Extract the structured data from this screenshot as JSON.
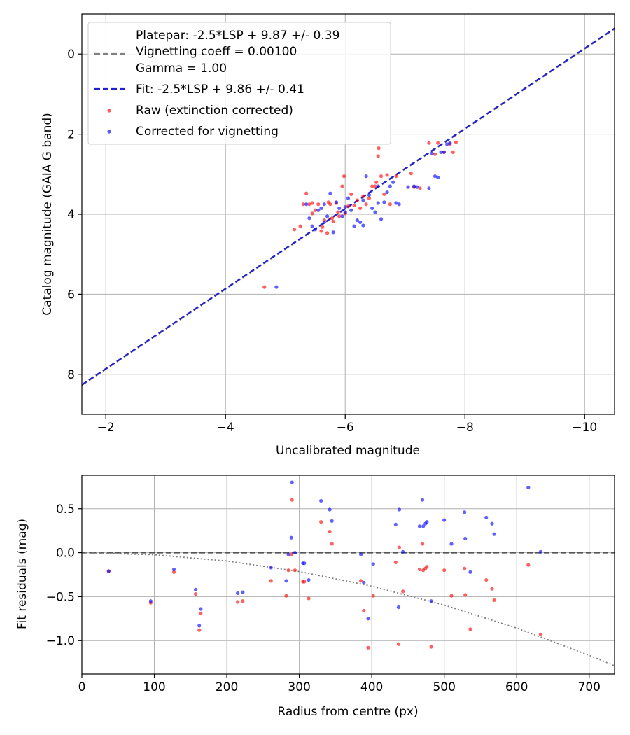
{
  "chart_data": [
    {
      "type": "scatter",
      "xlabel": "Uncalibrated magnitude",
      "ylabel": "Catalog magnitude (GAIA G band)",
      "xlim": [
        -1.6,
        -10.5
      ],
      "ylim": [
        9.0,
        -1.0
      ],
      "x_ticks": [
        -2,
        -4,
        -6,
        -8,
        -10
      ],
      "x_tick_labels": [
        "−2",
        "−4",
        "−6",
        "−8",
        "−10"
      ],
      "y_ticks": [
        0,
        2,
        4,
        6,
        8
      ],
      "y_tick_labels": [
        "0",
        "2",
        "4",
        "6",
        "8"
      ],
      "grid": true,
      "legend_position": "upper-left",
      "legend": {
        "platepar_line1": "Platepar: -2.5*LSP + 9.87 +/- 0.39",
        "platepar_line2": "Vignetting coeff = 0.00100",
        "platepar_line3": "Gamma = 1.00",
        "fit": "Fit: -2.5*LSP + 9.86 +/- 0.41",
        "raw": "Raw (extinction corrected)",
        "corrected": "Corrected for vignetting"
      },
      "lines": [
        {
          "name": "Platepar",
          "color": "#808080",
          "style": "dashed",
          "slope": 1,
          "intercept": 9.87
        },
        {
          "name": "Fit",
          "color": "#2020d0",
          "style": "dashed",
          "slope": 1,
          "intercept": 9.86
        }
      ],
      "series": [
        {
          "name": "Raw (extinction corrected)",
          "color": "#ff0000",
          "points": [
            [
              -4.65,
              5.82
            ],
            [
              -5.15,
              4.38
            ],
            [
              -5.25,
              4.3
            ],
            [
              -5.3,
              3.75
            ],
            [
              -5.35,
              3.48
            ],
            [
              -5.4,
              3.75
            ],
            [
              -5.45,
              3.98
            ],
            [
              -5.5,
              3.9
            ],
            [
              -5.55,
              3.75
            ],
            [
              -5.6,
              4.42
            ],
            [
              -5.62,
              4.32
            ],
            [
              -5.65,
              4.15
            ],
            [
              -5.7,
              4.47
            ],
            [
              -5.72,
              3.7
            ],
            [
              -5.75,
              3.75
            ],
            [
              -5.78,
              4.1
            ],
            [
              -5.8,
              4.18
            ],
            [
              -5.85,
              3.72
            ],
            [
              -5.88,
              3.95
            ],
            [
              -5.9,
              4.05
            ],
            [
              -5.95,
              3.3
            ],
            [
              -5.98,
              3.05
            ],
            [
              -6.05,
              3.8
            ],
            [
              -6.1,
              3.5
            ],
            [
              -6.15,
              3.78
            ],
            [
              -6.2,
              3.65
            ],
            [
              -6.25,
              3.85
            ],
            [
              -6.3,
              3.55
            ],
            [
              -6.35,
              3.75
            ],
            [
              -6.4,
              3.6
            ],
            [
              -6.45,
              3.3
            ],
            [
              -6.5,
              3.3
            ],
            [
              -6.52,
              3.2
            ],
            [
              -6.55,
              2.55
            ],
            [
              -6.56,
              2.35
            ],
            [
              -6.6,
              3.05
            ],
            [
              -6.65,
              3.5
            ],
            [
              -6.75,
              3.75
            ],
            [
              -6.85,
              3.05
            ],
            [
              -7.1,
              2.98
            ],
            [
              -7.15,
              3.32
            ],
            [
              -7.25,
              3.35
            ],
            [
              -7.4,
              2.22
            ],
            [
              -7.5,
              2.5
            ],
            [
              -7.55,
              2.22
            ],
            [
              -7.65,
              2.45
            ],
            [
              -7.75,
              2.25
            ],
            [
              -7.8,
              2.45
            ],
            [
              -7.85,
              2.2
            ],
            [
              -6.7,
              3.02
            ],
            [
              -5.45,
              3.72
            ],
            [
              -6.0,
              3.98
            ]
          ]
        },
        {
          "name": "Corrected for vignetting",
          "color": "#0000ff",
          "points": [
            [
              -4.85,
              5.82
            ],
            [
              -5.35,
              3.75
            ],
            [
              -5.4,
              4.1
            ],
            [
              -5.45,
              4.3
            ],
            [
              -5.5,
              4.38
            ],
            [
              -5.55,
              3.9
            ],
            [
              -5.6,
              3.85
            ],
            [
              -5.65,
              4.2
            ],
            [
              -5.7,
              4.05
            ],
            [
              -5.75,
              3.48
            ],
            [
              -5.8,
              4.45
            ],
            [
              -5.85,
              3.7
            ],
            [
              -5.9,
              3.85
            ],
            [
              -5.95,
              4.05
            ],
            [
              -6.0,
              3.82
            ],
            [
              -6.05,
              3.6
            ],
            [
              -6.1,
              3.9
            ],
            [
              -6.15,
              4.3
            ],
            [
              -6.2,
              4.15
            ],
            [
              -6.25,
              4.2
            ],
            [
              -6.3,
              3.65
            ],
            [
              -6.35,
              3.05
            ],
            [
              -6.4,
              3.52
            ],
            [
              -6.45,
              3.85
            ],
            [
              -6.5,
              3.95
            ],
            [
              -6.55,
              3.72
            ],
            [
              -6.6,
              4.12
            ],
            [
              -6.65,
              3.7
            ],
            [
              -6.7,
              3.45
            ],
            [
              -6.75,
              3.3
            ],
            [
              -6.8,
              3.2
            ],
            [
              -6.85,
              3.72
            ],
            [
              -6.9,
              3.75
            ],
            [
              -7.05,
              3.32
            ],
            [
              -7.15,
              3.3
            ],
            [
              -7.2,
              3.32
            ],
            [
              -7.4,
              3.35
            ],
            [
              -7.45,
              2.48
            ],
            [
              -7.5,
              3.05
            ],
            [
              -7.55,
              3.08
            ],
            [
              -7.6,
              2.45
            ],
            [
              -7.65,
              2.45
            ],
            [
              -7.7,
              2.25
            ],
            [
              -7.75,
              2.22
            ],
            [
              -6.3,
              4.28
            ],
            [
              -6.55,
              3.3
            ],
            [
              -6.0,
              3.95
            ],
            [
              -5.65,
              3.75
            ]
          ]
        }
      ]
    },
    {
      "type": "scatter",
      "xlabel": "Radius from centre (px)",
      "ylabel": "Fit residuals (mag)",
      "xlim": [
        0,
        735
      ],
      "ylim": [
        -1.38,
        0.88
      ],
      "x_ticks": [
        0,
        100,
        200,
        300,
        400,
        500,
        600,
        700
      ],
      "x_tick_labels": [
        "0",
        "100",
        "200",
        "300",
        "400",
        "500",
        "600",
        "700"
      ],
      "y_ticks": [
        -1.0,
        -0.5,
        0.0,
        0.5
      ],
      "y_tick_labels": [
        "−1.0",
        "−0.5",
        "0.0",
        "0.5"
      ],
      "grid": true,
      "lines": [
        {
          "name": "Zero",
          "color": "#555555",
          "style": "dashed",
          "y": 0
        },
        {
          "name": "Vignetting model",
          "color": "#808080",
          "style": "dotted",
          "formula": "-0.001*r^2/420",
          "points": [
            [
              0,
              0
            ],
            [
              100,
              -0.024
            ],
            [
              200,
              -0.095
            ],
            [
              300,
              -0.214
            ],
            [
              400,
              -0.381
            ],
            [
              500,
              -0.595
            ],
            [
              600,
              -0.857
            ],
            [
              700,
              -1.167
            ],
            [
              735,
              -1.286
            ]
          ]
        }
      ],
      "series": [
        {
          "name": "Raw (extinction corrected)",
          "color": "#ff0000",
          "points": [
            [
              37,
              -0.21
            ],
            [
              95,
              -0.57
            ],
            [
              127,
              -0.22
            ],
            [
              157,
              -0.47
            ],
            [
              162,
              -0.88
            ],
            [
              164,
              -0.69
            ],
            [
              215,
              -0.56
            ],
            [
              222,
              -0.55
            ],
            [
              261,
              -0.32
            ],
            [
              282,
              -0.49
            ],
            [
              285,
              -0.2
            ],
            [
              289,
              -0.02
            ],
            [
              290,
              0.6
            ],
            [
              294,
              -0.2
            ],
            [
              305,
              -0.33
            ],
            [
              307,
              -0.33
            ],
            [
              313,
              -0.52
            ],
            [
              330,
              0.35
            ],
            [
              342,
              0.24
            ],
            [
              345,
              0.1
            ],
            [
              385,
              -0.32
            ],
            [
              389,
              -0.66
            ],
            [
              395,
              -1.08
            ],
            [
              402,
              -0.49
            ],
            [
              433,
              -0.11
            ],
            [
              437,
              -1.04
            ],
            [
              438,
              0.06
            ],
            [
              443,
              -0.44
            ],
            [
              466,
              -0.19
            ],
            [
              470,
              0.1
            ],
            [
              471,
              -0.2
            ],
            [
              474,
              -0.18
            ],
            [
              476,
              -0.16
            ],
            [
              482,
              -1.07
            ],
            [
              500,
              -0.2
            ],
            [
              510,
              -0.49
            ],
            [
              528,
              -0.18
            ],
            [
              529,
              -0.48
            ],
            [
              536,
              -0.87
            ],
            [
              558,
              -0.31
            ],
            [
              566,
              -0.41
            ],
            [
              569,
              -0.54
            ],
            [
              616,
              -0.14
            ],
            [
              633,
              -0.93
            ]
          ]
        },
        {
          "name": "Corrected for vignetting",
          "color": "#0000ff",
          "points": [
            [
              37,
              -0.21
            ],
            [
              95,
              -0.55
            ],
            [
              127,
              -0.19
            ],
            [
              157,
              -0.42
            ],
            [
              162,
              -0.83
            ],
            [
              164,
              -0.64
            ],
            [
              215,
              -0.46
            ],
            [
              222,
              -0.45
            ],
            [
              261,
              -0.17
            ],
            [
              282,
              -0.32
            ],
            [
              285,
              -0.02
            ],
            [
              289,
              0.17
            ],
            [
              290,
              0.8
            ],
            [
              294,
              0.0
            ],
            [
              305,
              -0.12
            ],
            [
              307,
              -0.12
            ],
            [
              313,
              -0.31
            ],
            [
              330,
              0.59
            ],
            [
              342,
              0.49
            ],
            [
              345,
              0.36
            ],
            [
              385,
              -0.02
            ],
            [
              389,
              -0.34
            ],
            [
              395,
              -0.75
            ],
            [
              402,
              -0.13
            ],
            [
              433,
              0.32
            ],
            [
              437,
              -0.62
            ],
            [
              438,
              0.49
            ],
            [
              443,
              0.01
            ],
            [
              466,
              0.3
            ],
            [
              470,
              0.6
            ],
            [
              471,
              0.3
            ],
            [
              474,
              0.33
            ],
            [
              476,
              0.35
            ],
            [
              482,
              -0.55
            ],
            [
              500,
              0.37
            ],
            [
              510,
              0.1
            ],
            [
              528,
              0.46
            ],
            [
              529,
              0.16
            ],
            [
              536,
              -0.22
            ],
            [
              558,
              0.4
            ],
            [
              566,
              0.33
            ],
            [
              569,
              0.21
            ],
            [
              616,
              0.74
            ],
            [
              633,
              0.01
            ]
          ]
        }
      ]
    }
  ]
}
